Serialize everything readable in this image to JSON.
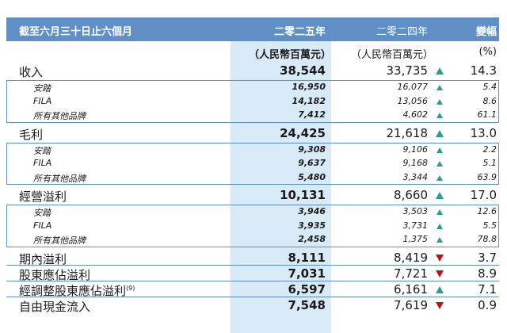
{
  "header": {
    "period": "截至六月三十日止六個月",
    "year_2025": "二零二五年",
    "year_2024": "二零二四年",
    "change": "變幅",
    "unit_2025": "（人民幣百萬元）",
    "unit_2024": "（人民幣百萬元）",
    "unit_pct": "(%)"
  },
  "colors": {
    "header_bg": "#5f8fc5",
    "highlight_col": "#d9eaf7",
    "up": "#2a9d8f",
    "down": "#c0121b"
  },
  "rows": [
    {
      "type": "main",
      "label": "收入",
      "v2025": "38,544",
      "v2024": "33,735",
      "dir": "up",
      "pct": "14.3"
    },
    {
      "type": "sub",
      "label": "安踏",
      "v2025": "16,950",
      "v2024": "16,077",
      "dir": "up",
      "pct": "5.4"
    },
    {
      "type": "sub",
      "label": "FILA",
      "v2025": "14,182",
      "v2024": "13,056",
      "dir": "up",
      "pct": "8.6"
    },
    {
      "type": "sub",
      "label": "所有其他品牌",
      "v2025": "7,412",
      "v2024": "4,602",
      "dir": "up",
      "pct": "61.1"
    },
    {
      "type": "main",
      "label": "毛利",
      "v2025": "24,425",
      "v2024": "21,618",
      "dir": "up",
      "pct": "13.0"
    },
    {
      "type": "sub",
      "label": "安踏",
      "v2025": "9,308",
      "v2024": "9,106",
      "dir": "up",
      "pct": "2.2"
    },
    {
      "type": "sub",
      "label": "FILA",
      "v2025": "9,637",
      "v2024": "9,168",
      "dir": "up",
      "pct": "5.1"
    },
    {
      "type": "sub",
      "label": "所有其他品牌",
      "v2025": "5,480",
      "v2024": "3,344",
      "dir": "up",
      "pct": "63.9"
    },
    {
      "type": "main",
      "label": "經營溢利",
      "v2025": "10,131",
      "v2024": "8,660",
      "dir": "up",
      "pct": "17.0"
    },
    {
      "type": "sub",
      "label": "安踏",
      "v2025": "3,946",
      "v2024": "3,503",
      "dir": "up",
      "pct": "12.6"
    },
    {
      "type": "sub",
      "label": "FILA",
      "v2025": "3,935",
      "v2024": "3,731",
      "dir": "up",
      "pct": "5.5"
    },
    {
      "type": "sub",
      "label": "所有其他品牌",
      "v2025": "2,458",
      "v2024": "1,375",
      "dir": "up",
      "pct": "78.8"
    },
    {
      "type": "main",
      "label": "期內溢利",
      "v2025": "8,111",
      "v2024": "8,419",
      "dir": "down",
      "pct": "3.7"
    },
    {
      "type": "main",
      "label": "股東應佔溢利",
      "v2025": "7,031",
      "v2024": "7,721",
      "dir": "down",
      "pct": "8.9"
    },
    {
      "type": "main",
      "label": "經調整股東應佔溢利",
      "sup": "(9)",
      "v2025": "6,597",
      "v2024": "6,161",
      "dir": "up",
      "pct": "7.1"
    },
    {
      "type": "main",
      "label": "自由現金流入",
      "v2025": "7,548",
      "v2024": "7,619",
      "dir": "down",
      "pct": "0.9"
    }
  ]
}
